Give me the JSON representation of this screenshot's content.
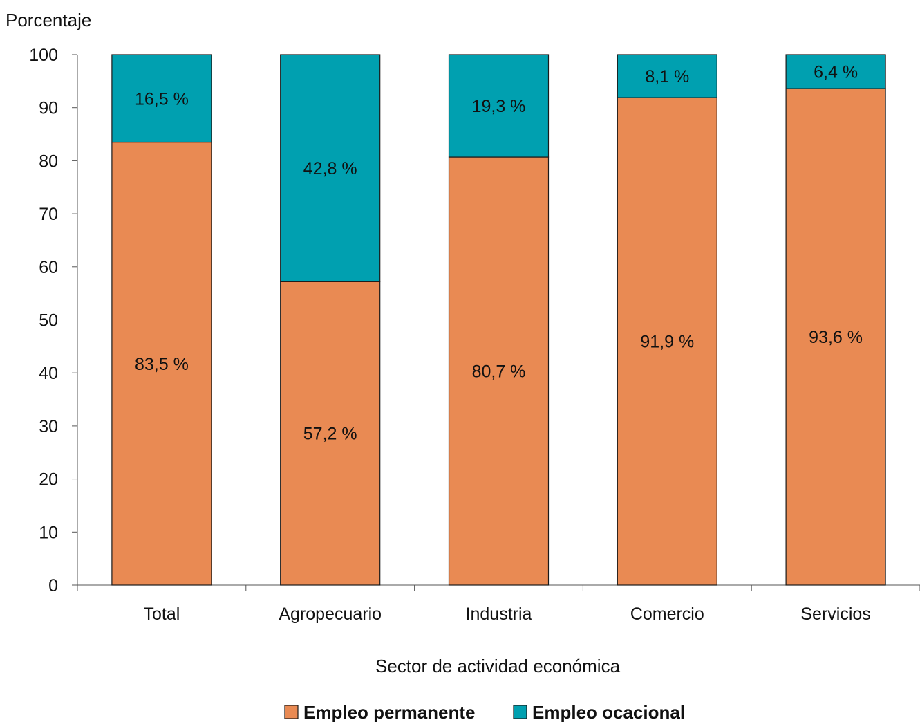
{
  "chart_data": {
    "type": "bar",
    "stacked": true,
    "title": "",
    "xlabel": "Sector de actividad económica",
    "ylabel": "Porcentaje",
    "ylim": [
      0,
      100
    ],
    "yticks": [
      "0",
      "10",
      "20",
      "30",
      "40",
      "50",
      "60",
      "70",
      "80",
      "90",
      "100"
    ],
    "grid": false,
    "legend_position": "bottom",
    "categories": [
      "Total",
      "Agropecuario",
      "Industria",
      "Comercio",
      "Servicios"
    ],
    "series": [
      {
        "name": "Empleo permanente",
        "color": "#E98A53",
        "values": [
          83.5,
          57.2,
          80.7,
          91.9,
          93.6
        ],
        "labels": [
          "83,5 %",
          "57,2 %",
          "80,7 %",
          "91,9 %",
          "93,6 %"
        ]
      },
      {
        "name": "Empleo ocacional",
        "color": "#00A0B0",
        "values": [
          16.5,
          42.8,
          19.3,
          8.1,
          6.4
        ],
        "labels": [
          "16,5 %",
          "42,8 %",
          "19,3 %",
          "8,1 %",
          "6,4 %"
        ]
      }
    ]
  }
}
